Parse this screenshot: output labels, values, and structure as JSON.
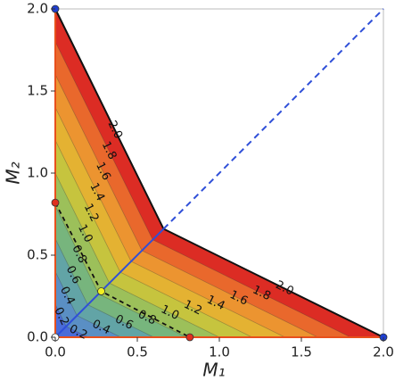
{
  "chart_data": {
    "type": "contour",
    "xlabel": "M₁",
    "ylabel": "M₂",
    "xlim": [
      0,
      2
    ],
    "ylim": [
      0,
      2
    ],
    "xticks": [
      {
        "value": 0,
        "label": "0.0"
      },
      0.5,
      {
        "value": 1,
        "label": "1.0"
      },
      1.5,
      {
        "value": 2,
        "label": "2.0"
      }
    ],
    "yticks": [
      {
        "value": 0,
        "label": "0.0"
      },
      0.5,
      {
        "value": 1,
        "label": "1.0"
      },
      1.5,
      {
        "value": 2,
        "label": "2.0"
      }
    ],
    "levels": [
      0.2,
      0.4,
      0.6,
      0.8,
      1,
      1.2,
      1.4,
      1.6,
      1.8,
      2
    ],
    "level_labels": [
      "0.2",
      "0.4",
      "0.6",
      "0.8",
      "1.0",
      "1.2",
      "1.4",
      "1.6",
      "1.8",
      "2.0"
    ],
    "colors": [
      "#4a6cd8",
      "#5a8fc4",
      "#62a4a6",
      "#77b57d",
      "#9cc05a",
      "#c6c43e",
      "#e4b232",
      "#ec9430",
      "#e9682c",
      "#dc2c24"
    ],
    "boundary": {
      "x": [
        0,
        0,
        0.66,
        2
      ],
      "y": [
        0,
        2,
        0.66,
        0
      ]
    },
    "ridge": {
      "x": [
        0,
        0.66
      ],
      "y": [
        0,
        0.66
      ],
      "color": "#2f4fd8"
    },
    "diagonal": {
      "x": [
        0.66,
        2
      ],
      "y": [
        0.66,
        2
      ],
      "color": "#2f4fd8"
    },
    "dashed_path": {
      "x": [
        0,
        0.28,
        0.82
      ],
      "y": [
        0.82,
        0.28,
        0
      ]
    },
    "points": [
      {
        "x": 0,
        "y": 2,
        "color": "#1f3fd0"
      },
      {
        "x": 2,
        "y": 0,
        "color": "#1f3fd0"
      },
      {
        "x": 0,
        "y": 0,
        "color": "#ffffff"
      },
      {
        "x": 0,
        "y": 0.82,
        "color": "#e03020"
      },
      {
        "x": 0.82,
        "y": 0,
        "color": "#e03020"
      },
      {
        "x": 0.28,
        "y": 0.28,
        "color": "#f2f020"
      }
    ]
  }
}
